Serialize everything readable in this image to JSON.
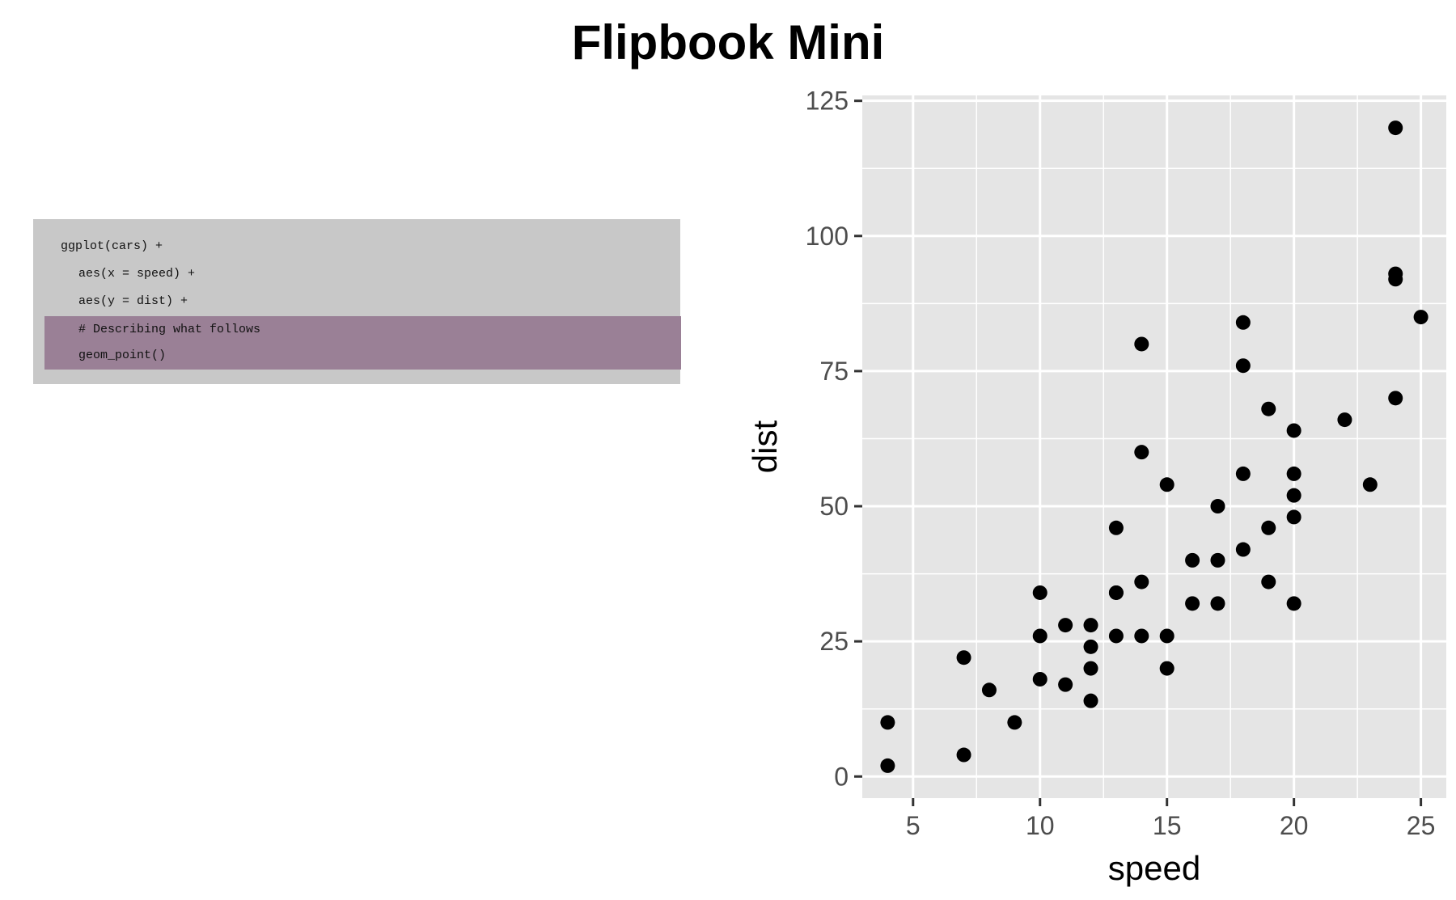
{
  "title": "Flipbook Mini",
  "code": {
    "lines": [
      {
        "text": "ggplot(cars) +",
        "highlighted": false,
        "indent": false
      },
      {
        "text": "aes(x = speed) +",
        "highlighted": false,
        "indent": true
      },
      {
        "text": "aes(y = dist) +",
        "highlighted": false,
        "indent": true
      },
      {
        "text": "# Describing what follows",
        "highlighted": true,
        "indent": true
      },
      {
        "text": "geom_point()",
        "highlighted": true,
        "indent": true
      }
    ]
  },
  "colors": {
    "panel_bg": "#e5e5e5",
    "grid": "#ffffff",
    "point": "#000000",
    "code_bg": "#c8c8c8",
    "highlight": "#9a8096"
  },
  "chart_data": {
    "type": "scatter",
    "xlabel": "speed",
    "ylabel": "dist",
    "xlim": [
      3,
      26
    ],
    "ylim": [
      -4,
      126
    ],
    "xticks": [
      5,
      10,
      15,
      20,
      25
    ],
    "yticks": [
      0,
      25,
      50,
      75,
      100,
      125
    ],
    "grid": true,
    "points": [
      [
        4,
        2
      ],
      [
        4,
        10
      ],
      [
        7,
        4
      ],
      [
        7,
        22
      ],
      [
        8,
        16
      ],
      [
        9,
        10
      ],
      [
        10,
        18
      ],
      [
        10,
        26
      ],
      [
        10,
        34
      ],
      [
        11,
        17
      ],
      [
        11,
        28
      ],
      [
        12,
        14
      ],
      [
        12,
        20
      ],
      [
        12,
        24
      ],
      [
        12,
        28
      ],
      [
        13,
        26
      ],
      [
        13,
        34
      ],
      [
        13,
        34
      ],
      [
        13,
        46
      ],
      [
        14,
        26
      ],
      [
        14,
        36
      ],
      [
        14,
        60
      ],
      [
        14,
        80
      ],
      [
        15,
        20
      ],
      [
        15,
        26
      ],
      [
        15,
        54
      ],
      [
        16,
        32
      ],
      [
        16,
        40
      ],
      [
        17,
        32
      ],
      [
        17,
        40
      ],
      [
        17,
        50
      ],
      [
        18,
        42
      ],
      [
        18,
        56
      ],
      [
        18,
        76
      ],
      [
        18,
        84
      ],
      [
        19,
        36
      ],
      [
        19,
        46
      ],
      [
        19,
        68
      ],
      [
        20,
        32
      ],
      [
        20,
        48
      ],
      [
        20,
        52
      ],
      [
        20,
        56
      ],
      [
        20,
        64
      ],
      [
        22,
        66
      ],
      [
        23,
        54
      ],
      [
        24,
        70
      ],
      [
        24,
        92
      ],
      [
        24,
        93
      ],
      [
        24,
        120
      ],
      [
        25,
        85
      ]
    ]
  }
}
